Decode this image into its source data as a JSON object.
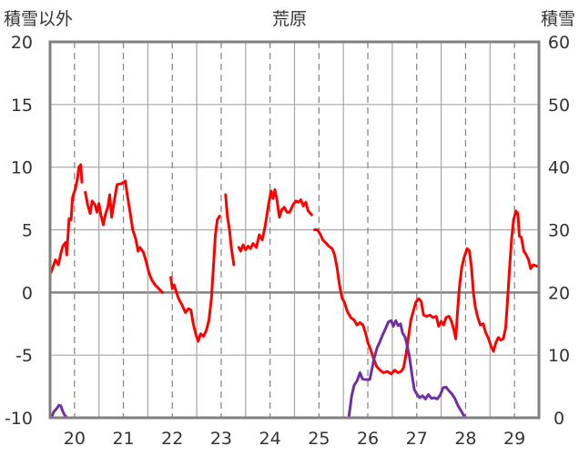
{
  "chart_data": {
    "type": "line",
    "title": "荒原",
    "ylabel": "積雪以外",
    "y2label": "積雪",
    "xlim": [
      19.5,
      29.5
    ],
    "ylim": [
      -10,
      20
    ],
    "y2lim": [
      0,
      60
    ],
    "xticks": [
      20,
      21,
      22,
      23,
      24,
      25,
      26,
      27,
      28,
      29
    ],
    "yticks": [
      20,
      15,
      10,
      5,
      0,
      -5,
      -10
    ],
    "y2ticks": [
      60,
      50,
      40,
      30,
      20,
      10,
      0
    ],
    "grid": true,
    "series": [
      {
        "y2": false,
        "color": "#ff0000",
        "segments": [
          [
            [
              19.52,
              1.6
            ],
            [
              19.61,
              2.6
            ],
            [
              19.67,
              2.2
            ],
            [
              19.72,
              3.1
            ],
            [
              19.76,
              3.7
            ],
            [
              19.82,
              4.0
            ],
            [
              19.84,
              3.0
            ],
            [
              19.89,
              5.9
            ],
            [
              19.93,
              5.8
            ],
            [
              19.96,
              7.6
            ],
            [
              20.02,
              8.3
            ],
            [
              20.06,
              9.1
            ],
            [
              20.09,
              10.0
            ],
            [
              20.13,
              10.2
            ],
            [
              20.15,
              8.8
            ]
          ],
          [
            [
              20.22,
              8.0
            ],
            [
              20.27,
              7.0
            ],
            [
              20.32,
              6.3
            ],
            [
              20.36,
              7.3
            ],
            [
              20.42,
              7.0
            ],
            [
              20.46,
              6.4
            ],
            [
              20.5,
              7.1
            ],
            [
              20.54,
              6.2
            ],
            [
              20.59,
              5.4
            ],
            [
              20.63,
              6.2
            ],
            [
              20.68,
              6.8
            ],
            [
              20.72,
              7.8
            ],
            [
              20.76,
              6.0
            ],
            [
              20.8,
              7.0
            ],
            [
              20.87,
              8.6
            ],
            [
              20.97,
              8.7
            ],
            [
              21.04,
              8.9
            ],
            [
              21.08,
              7.8
            ],
            [
              21.13,
              6.6
            ],
            [
              21.19,
              5.0
            ],
            [
              21.25,
              4.3
            ],
            [
              21.3,
              3.3
            ],
            [
              21.34,
              3.6
            ],
            [
              21.41,
              3.2
            ],
            [
              21.47,
              2.4
            ],
            [
              21.52,
              1.6
            ],
            [
              21.58,
              1.0
            ],
            [
              21.65,
              0.6
            ],
            [
              21.75,
              0.2
            ],
            [
              21.8,
              0.0
            ]
          ],
          [
            [
              21.97,
              1.2
            ],
            [
              22.0,
              0.3
            ],
            [
              22.04,
              0.6
            ],
            [
              22.07,
              0.2
            ],
            [
              22.13,
              -0.5
            ],
            [
              22.2,
              -1.0
            ],
            [
              22.27,
              -1.6
            ],
            [
              22.33,
              -1.3
            ],
            [
              22.38,
              -1.4
            ],
            [
              22.43,
              -2.5
            ],
            [
              22.48,
              -3.3
            ],
            [
              22.53,
              -3.9
            ],
            [
              22.58,
              -3.3
            ],
            [
              22.64,
              -3.5
            ],
            [
              22.7,
              -3.0
            ],
            [
              22.75,
              -2.2
            ],
            [
              22.8,
              -0.5
            ],
            [
              22.84,
              2.0
            ],
            [
              22.88,
              4.5
            ],
            [
              22.92,
              5.8
            ],
            [
              22.97,
              6.1
            ]
          ],
          [
            [
              23.09,
              7.8
            ],
            [
              23.13,
              6.0
            ],
            [
              23.17,
              5.0
            ],
            [
              23.21,
              3.5
            ],
            [
              23.26,
              2.2
            ]
          ],
          [
            [
              23.36,
              3.6
            ],
            [
              23.4,
              3.3
            ],
            [
              23.45,
              3.8
            ],
            [
              23.5,
              3.4
            ],
            [
              23.55,
              3.7
            ],
            [
              23.6,
              3.5
            ],
            [
              23.65,
              3.9
            ],
            [
              23.72,
              3.6
            ],
            [
              23.78,
              4.6
            ],
            [
              23.84,
              4.2
            ],
            [
              23.9,
              5.3
            ],
            [
              23.96,
              6.8
            ],
            [
              24.02,
              8.1
            ],
            [
              24.06,
              7.5
            ],
            [
              24.1,
              8.2
            ],
            [
              24.14,
              7.4
            ],
            [
              24.19,
              6.0
            ],
            [
              24.24,
              6.6
            ],
            [
              24.29,
              6.8
            ],
            [
              24.35,
              6.4
            ],
            [
              24.4,
              6.4
            ],
            [
              24.47,
              7.0
            ],
            [
              24.53,
              7.3
            ],
            [
              24.58,
              7.2
            ],
            [
              24.63,
              7.4
            ],
            [
              24.68,
              6.9
            ],
            [
              24.73,
              7.2
            ],
            [
              24.78,
              6.5
            ],
            [
              24.85,
              6.2
            ]
          ],
          [
            [
              24.91,
              5.0
            ],
            [
              24.97,
              5.0
            ],
            [
              25.02,
              4.7
            ],
            [
              25.08,
              4.2
            ],
            [
              25.13,
              4.0
            ],
            [
              25.2,
              3.7
            ],
            [
              25.27,
              3.5
            ],
            [
              25.32,
              3.0
            ],
            [
              25.37,
              2.0
            ],
            [
              25.42,
              0.6
            ],
            [
              25.47,
              -0.4
            ],
            [
              25.52,
              -0.8
            ],
            [
              25.58,
              -1.5
            ],
            [
              25.65,
              -2.0
            ],
            [
              25.72,
              -2.2
            ],
            [
              25.78,
              -2.6
            ],
            [
              25.84,
              -2.4
            ],
            [
              25.9,
              -2.6
            ],
            [
              25.95,
              -3.2
            ],
            [
              26.0,
              -4.0
            ],
            [
              26.06,
              -4.6
            ],
            [
              26.12,
              -5.3
            ],
            [
              26.18,
              -5.9
            ],
            [
              26.25,
              -6.2
            ],
            [
              26.32,
              -6.4
            ],
            [
              26.4,
              -6.3
            ],
            [
              26.48,
              -6.5
            ],
            [
              26.55,
              -6.2
            ],
            [
              26.62,
              -6.4
            ],
            [
              26.68,
              -6.3
            ],
            [
              26.73,
              -6.0
            ],
            [
              26.78,
              -5.0
            ],
            [
              26.83,
              -3.6
            ],
            [
              26.88,
              -2.2
            ],
            [
              26.93,
              -1.5
            ],
            [
              26.98,
              -0.8
            ],
            [
              27.04,
              -0.5
            ],
            [
              27.09,
              -0.7
            ],
            [
              27.14,
              -1.8
            ],
            [
              27.2,
              -1.9
            ],
            [
              27.27,
              -1.8
            ],
            [
              27.33,
              -2.0
            ],
            [
              27.4,
              -1.9
            ],
            [
              27.45,
              -2.7
            ],
            [
              27.5,
              -2.3
            ],
            [
              27.55,
              -2.6
            ],
            [
              27.6,
              -2.0
            ],
            [
              27.66,
              -1.9
            ],
            [
              27.71,
              -2.3
            ],
            [
              27.76,
              -3.0
            ],
            [
              27.8,
              -3.7
            ],
            [
              27.83,
              -1.8
            ],
            [
              27.87,
              0.3
            ],
            [
              27.92,
              2.0
            ],
            [
              27.97,
              2.8
            ],
            [
              28.03,
              3.5
            ],
            [
              28.08,
              3.3
            ],
            [
              28.12,
              2.0
            ],
            [
              28.16,
              0.0
            ],
            [
              28.2,
              -1.2
            ],
            [
              28.25,
              -2.0
            ],
            [
              28.3,
              -2.6
            ],
            [
              28.36,
              -2.5
            ],
            [
              28.41,
              -3.2
            ],
            [
              28.46,
              -3.6
            ],
            [
              28.52,
              -4.3
            ],
            [
              28.57,
              -4.7
            ],
            [
              28.62,
              -4.0
            ],
            [
              28.67,
              -3.6
            ],
            [
              28.72,
              -3.8
            ],
            [
              28.77,
              -3.7
            ],
            [
              28.82,
              -2.8
            ],
            [
              28.86,
              -0.5
            ],
            [
              28.9,
              2.0
            ],
            [
              28.94,
              4.2
            ],
            [
              28.98,
              5.8
            ],
            [
              29.03,
              6.5
            ],
            [
              29.07,
              6.3
            ],
            [
              29.1,
              4.5
            ],
            [
              29.14,
              4.4
            ],
            [
              29.19,
              3.3
            ],
            [
              29.24,
              3.0
            ],
            [
              29.29,
              2.6
            ],
            [
              29.33,
              1.9
            ],
            [
              29.38,
              2.2
            ],
            [
              29.46,
              2.1
            ]
          ]
        ]
      },
      {
        "y2": true,
        "color": "#7030a0",
        "segments": [
          [
            [
              19.52,
              0.0
            ],
            [
              19.58,
              1.0
            ],
            [
              19.64,
              1.5
            ],
            [
              19.68,
              2.0
            ],
            [
              19.72,
              1.9
            ],
            [
              19.76,
              1.0
            ],
            [
              19.8,
              0.4
            ],
            [
              19.85,
              0.0
            ],
            [
              25.61,
              0.0
            ],
            [
              25.67,
              3.5
            ],
            [
              25.72,
              5.2
            ],
            [
              25.78,
              5.9
            ],
            [
              25.84,
              7.2
            ],
            [
              25.89,
              6.2
            ],
            [
              25.95,
              6.1
            ],
            [
              26.04,
              6.1
            ],
            [
              26.08,
              7.6
            ],
            [
              26.13,
              9.5
            ],
            [
              26.19,
              11.2
            ],
            [
              26.24,
              12.0
            ],
            [
              26.3,
              13.2
            ],
            [
              26.36,
              14.2
            ],
            [
              26.42,
              15.3
            ],
            [
              26.48,
              15.5
            ],
            [
              26.52,
              14.6
            ],
            [
              26.57,
              15.5
            ],
            [
              26.62,
              14.7
            ],
            [
              26.67,
              15.0
            ],
            [
              26.71,
              13.5
            ],
            [
              26.76,
              12.9
            ],
            [
              26.8,
              11.7
            ],
            [
              26.85,
              9.8
            ],
            [
              26.9,
              7.0
            ],
            [
              26.95,
              4.5
            ],
            [
              27.0,
              3.8
            ],
            [
              27.06,
              3.2
            ],
            [
              27.12,
              3.5
            ],
            [
              27.18,
              3.0
            ],
            [
              27.24,
              3.7
            ],
            [
              27.3,
              3.1
            ],
            [
              27.36,
              3.2
            ],
            [
              27.42,
              3.0
            ],
            [
              27.48,
              3.6
            ],
            [
              27.54,
              4.8
            ],
            [
              27.6,
              4.9
            ],
            [
              27.66,
              4.3
            ],
            [
              27.72,
              3.8
            ],
            [
              27.78,
              3.1
            ],
            [
              27.84,
              2.0
            ],
            [
              27.9,
              1.2
            ],
            [
              27.96,
              0.4
            ],
            [
              28.01,
              0.0
            ],
            [
              29.5,
              0.0
            ]
          ]
        ]
      }
    ]
  }
}
